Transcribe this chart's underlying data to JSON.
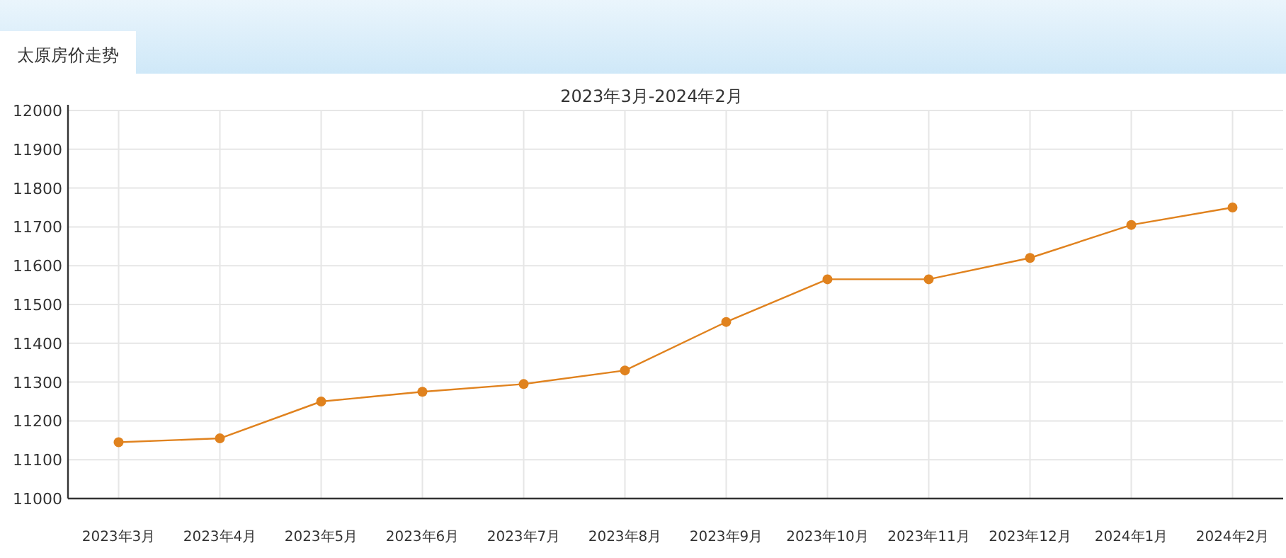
{
  "chart_data": {
    "type": "line",
    "title": "太原房价走势",
    "subtitle": "2023年3月-2024年2月",
    "categories": [
      "2023年3月",
      "2023年4月",
      "2023年5月",
      "2023年6月",
      "2023年7月",
      "2023年8月",
      "2023年9月",
      "2023年10月",
      "2023年11月",
      "2023年12月",
      "2024年1月",
      "2024年2月"
    ],
    "series": [
      {
        "color": "#e0821e",
        "values": [
          11145,
          11155,
          11250,
          11275,
          11295,
          11330,
          11455,
          11565,
          11565,
          11620,
          11705,
          11750
        ]
      }
    ],
    "ylim": [
      11000,
      12000
    ],
    "yticks": [
      11000,
      11100,
      11200,
      11300,
      11400,
      11500,
      11600,
      11700,
      11800,
      11900,
      12000
    ],
    "grid": true,
    "marker": "circle",
    "line_style": "solid"
  }
}
